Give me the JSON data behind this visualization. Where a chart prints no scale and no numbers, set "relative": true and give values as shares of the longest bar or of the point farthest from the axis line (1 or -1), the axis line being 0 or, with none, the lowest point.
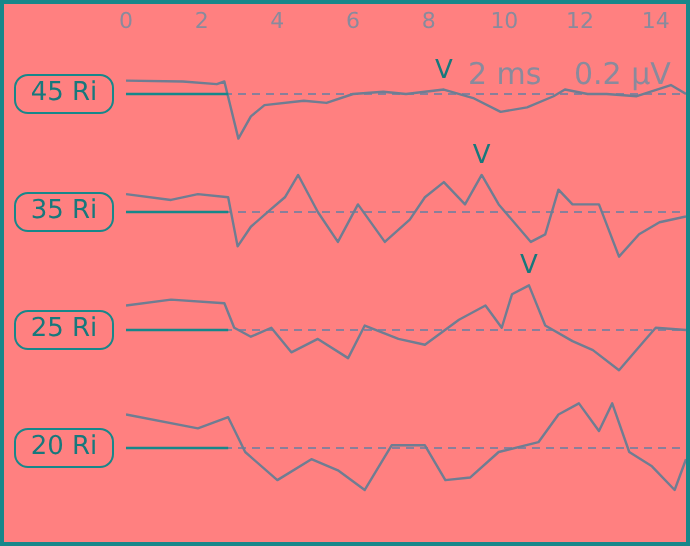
{
  "chart_data": [
    {
      "type": "line",
      "ylabel": "45 Ri",
      "relative": true,
      "xlim": [
        0,
        14.8
      ],
      "xticks": [
        0,
        2,
        4,
        6,
        8,
        10,
        12,
        14
      ],
      "tick_labels": "x",
      "marker": "none",
      "ref_lines": [
        {
          "axis": "y",
          "value": 0,
          "color": "#8a7f9a",
          "line_style": "dashed"
        }
      ],
      "annotations": [
        {
          "text": "V",
          "x": 8.4,
          "y": 0.1
        },
        "2 ms",
        "0.2 µV"
      ],
      "series": [
        {
          "color": "#6f7d92",
          "x": [
            0,
            1.5,
            2.4,
            2.6,
            2.97,
            3.3,
            3.66,
            4.7,
            5.3,
            6.0,
            6.8,
            7.4,
            7.9,
            8.4,
            9.2,
            9.9,
            10.6,
            11.3,
            11.6,
            12.2,
            12.7,
            13.5,
            14.4,
            14.8
          ],
          "values": [
            0.3,
            0.28,
            0.22,
            0.28,
            -1,
            -0.5,
            -0.25,
            -0.15,
            -0.2,
            0,
            0.05,
            0,
            0.05,
            0.1,
            -0.1,
            -0.4,
            -0.3,
            -0.05,
            0.1,
            0,
            0,
            -0.05,
            0.2,
            0
          ]
        },
        {
          "color": "#17878a",
          "x": [
            0,
            2.7
          ],
          "values": [
            0,
            0
          ]
        }
      ]
    },
    {
      "type": "line",
      "ylabel": "35 Ri",
      "relative": true,
      "xlim": [
        0,
        14.8
      ],
      "xticks": [
        0,
        2,
        4,
        6,
        8,
        10,
        12,
        14
      ],
      "tick_labels": false,
      "marker": "none",
      "ref_lines": [
        {
          "axis": "y",
          "value": 0,
          "color": "#8a7f9a",
          "line_style": "dashed"
        }
      ],
      "annotations": [
        {
          "text": "V",
          "x": 9.4,
          "y": 0.83
        }
      ],
      "series": [
        {
          "color": "#6f7d92",
          "x": [
            0,
            1.19,
            1.9,
            2.7,
            2.95,
            3.3,
            3.84,
            4.2,
            4.55,
            5.07,
            5.6,
            6.13,
            6.84,
            7.5,
            7.9,
            8.4,
            8.96,
            9.4,
            9.85,
            10.7,
            11.08,
            11.43,
            11.8,
            12.5,
            13.03,
            13.56,
            14.1,
            14.8
          ],
          "values": [
            0.4,
            0.27,
            0.4,
            0.33,
            -0.77,
            -0.33,
            0.07,
            0.33,
            0.83,
            0,
            -0.67,
            0.17,
            -0.67,
            -0.17,
            0.33,
            0.67,
            0.17,
            0.83,
            0.17,
            -0.67,
            -0.5,
            0.5,
            0.17,
            0.17,
            -1,
            -0.5,
            -0.23,
            -0.1
          ]
        },
        {
          "color": "#17878a",
          "x": [
            0,
            2.7
          ],
          "values": [
            0,
            0
          ]
        }
      ]
    },
    {
      "type": "line",
      "ylabel": "25 Ri",
      "relative": true,
      "xlim": [
        0,
        14.8
      ],
      "xticks": [
        0,
        2,
        4,
        6,
        8,
        10,
        12,
        14
      ],
      "tick_labels": false,
      "marker": "none",
      "ref_lines": [
        {
          "axis": "y",
          "value": 0,
          "color": "#8a7f9a",
          "line_style": "dashed"
        }
      ],
      "annotations": [
        {
          "text": "V",
          "x": 10.65,
          "y": 1
        }
      ],
      "series": [
        {
          "color": "#6f7d92",
          "x": [
            0,
            1.19,
            2.6,
            2.86,
            3.3,
            3.84,
            4.37,
            5.07,
            5.87,
            6.31,
            7.2,
            7.9,
            8.8,
            9.5,
            9.93,
            10.2,
            10.65,
            11.08,
            11.8,
            12.34,
            13.03,
            13.74,
            14.0,
            14.8
          ],
          "values": [
            0.55,
            0.68,
            0.6,
            0.05,
            -0.15,
            0.05,
            -0.5,
            -0.2,
            -0.63,
            0.1,
            -0.2,
            -0.33,
            0.23,
            0.55,
            0.05,
            0.8,
            1,
            0.1,
            -0.25,
            -0.45,
            -0.9,
            -0.2,
            0.05,
            0
          ]
        },
        {
          "color": "#17878a",
          "x": [
            0,
            2.7
          ],
          "values": [
            0,
            0
          ]
        }
      ]
    },
    {
      "type": "line",
      "ylabel": "20 Ri",
      "relative": true,
      "xlim": [
        0,
        14.8
      ],
      "xticks": [
        0,
        2,
        4,
        6,
        8,
        10,
        12,
        14
      ],
      "tick_labels": false,
      "marker": "none",
      "ref_lines": [
        {
          "axis": "y",
          "value": 0,
          "color": "#8a7f9a",
          "line_style": "dashed"
        }
      ],
      "series": [
        {
          "color": "#6f7d92",
          "x": [
            0,
            1.9,
            2.7,
            3.15,
            4.0,
            4.9,
            5.6,
            6.31,
            7.02,
            7.9,
            8.44,
            9.1,
            9.85,
            10.9,
            11.43,
            11.97,
            12.5,
            12.85,
            13.3,
            13.9,
            14.5,
            14.8
          ],
          "values": [
            0.75,
            0.44,
            0.69,
            -0.09,
            -0.72,
            -0.25,
            -0.5,
            -0.94,
            0.06,
            0.06,
            -0.72,
            -0.66,
            -0.09,
            0.13,
            0.75,
            1,
            0.38,
            1,
            -0.09,
            -0.41,
            -0.94,
            -0.25
          ]
        },
        {
          "color": "#17878a",
          "x": [
            0,
            2.7
          ],
          "values": [
            0,
            0
          ]
        }
      ]
    }
  ]
}
